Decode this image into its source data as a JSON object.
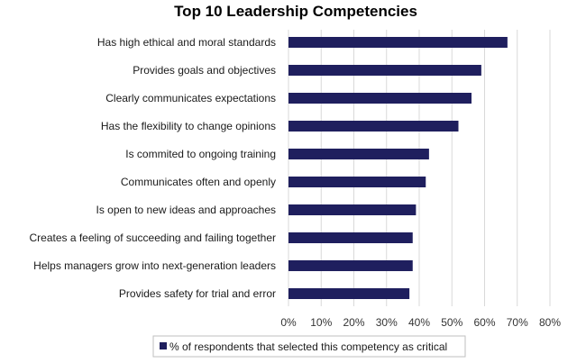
{
  "chart_data": {
    "type": "bar",
    "orientation": "horizontal",
    "title": "Top 10 Leadership Competencies",
    "categories": [
      "Has high ethical and moral standards",
      "Provides goals and objectives",
      "Clearly communicates expectations",
      "Has the flexibility to change opinions",
      "Is commited to ongoing training",
      "Communicates often and openly",
      "Is open to new ideas and approaches",
      "Creates a feeling of succeeding and failing together",
      "Helps managers grow into next-generation leaders",
      "Provides safety for trial and error"
    ],
    "series": [
      {
        "name": "% of respondents that selected this competency as critical",
        "values": [
          67,
          59,
          56,
          52,
          43,
          42,
          39,
          38,
          38,
          37
        ],
        "color": "#1f1f5e"
      }
    ],
    "xlim": [
      0,
      80
    ],
    "xticks": [
      "0%",
      "10%",
      "20%",
      "30%",
      "40%",
      "50%",
      "60%",
      "70%",
      "80%"
    ],
    "grid": true,
    "legend": "bottom"
  },
  "colors": {
    "bar": "#1f1f5e",
    "grid": "#d9d9d9",
    "legend_border": "#bfbfbf"
  }
}
